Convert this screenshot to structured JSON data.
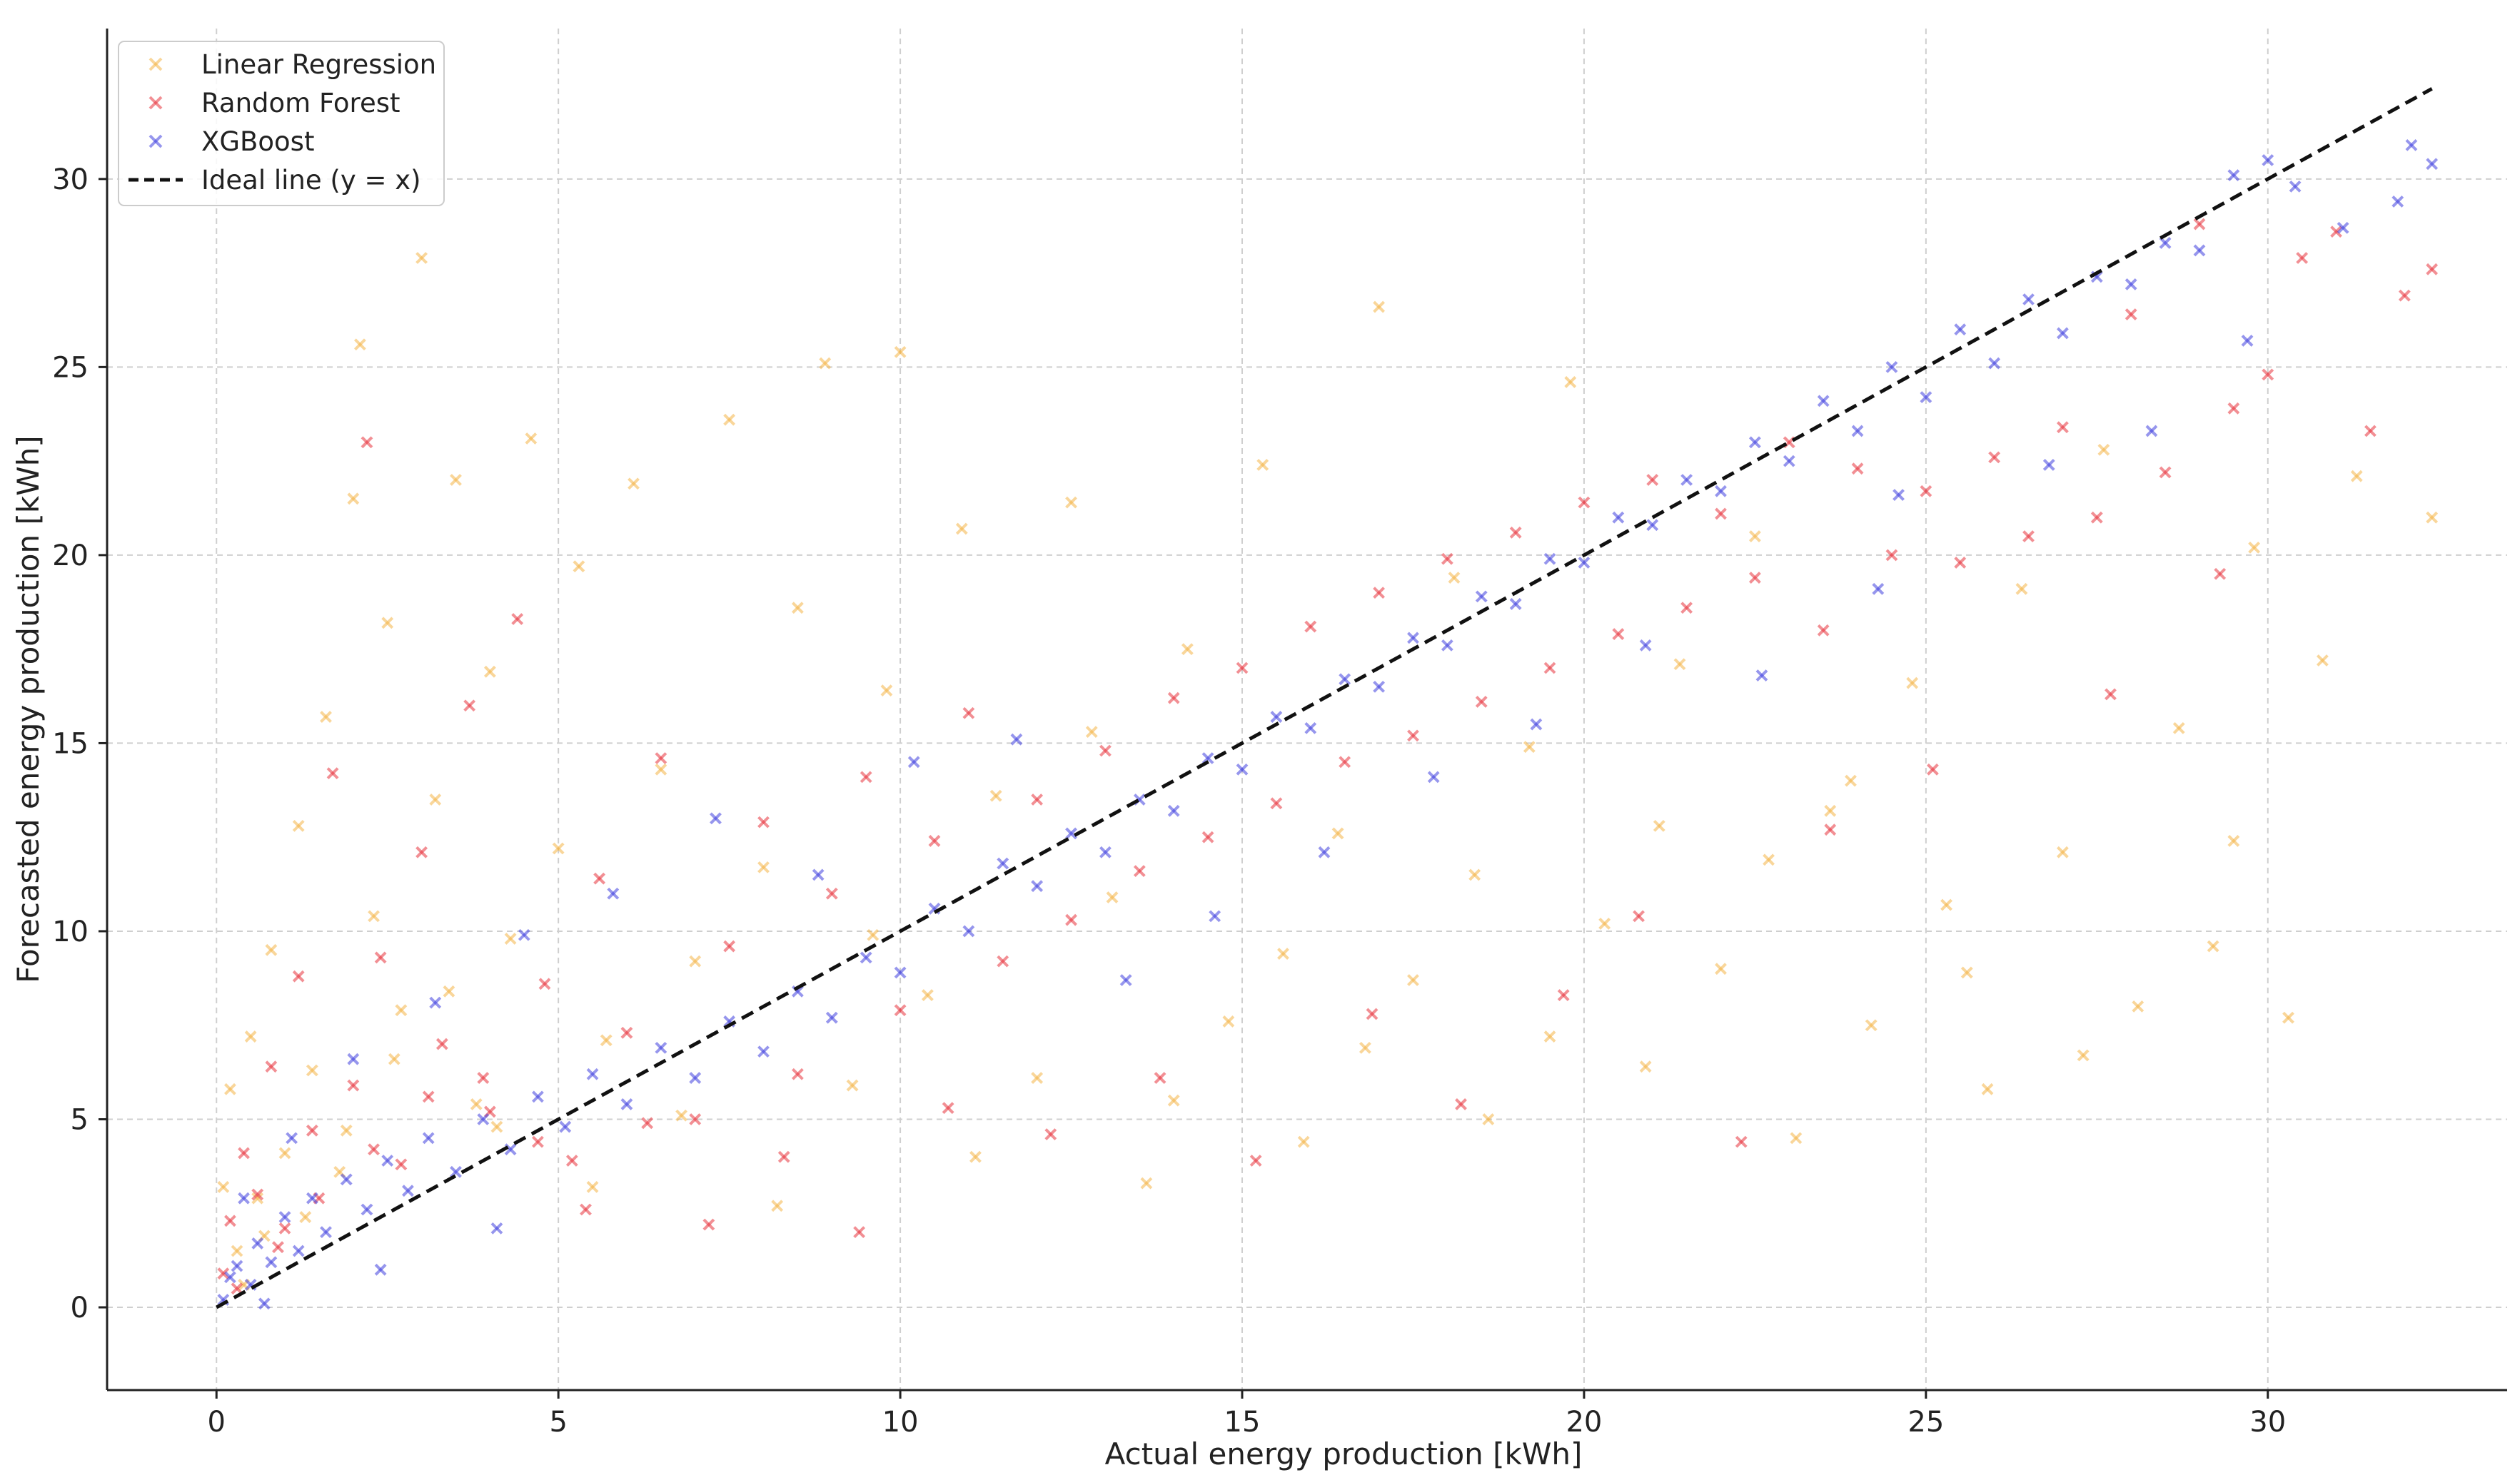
{
  "chart_data": {
    "type": "scatter",
    "title": "",
    "xlabel": "Actual energy production [kWh]",
    "ylabel": "Forecasted energy production [kWh]",
    "xlim": [
      -1.6,
      33.5
    ],
    "ylim": [
      -2.2,
      34.0
    ],
    "xticks": [
      0,
      5,
      10,
      15,
      20,
      25,
      30
    ],
    "yticks": [
      0,
      5,
      10,
      15,
      20,
      25,
      30
    ],
    "grid": true,
    "legend_position": "top-left",
    "series": [
      {
        "name": "Linear Regression",
        "color": "#f4b447",
        "marker": "x",
        "points": [
          [
            0.1,
            3.2
          ],
          [
            0.2,
            5.8
          ],
          [
            0.3,
            1.5
          ],
          [
            0.5,
            7.2
          ],
          [
            0.6,
            2.9
          ],
          [
            0.8,
            9.5
          ],
          [
            1.0,
            4.1
          ],
          [
            1.2,
            12.8
          ],
          [
            1.4,
            6.3
          ],
          [
            1.6,
            15.7
          ],
          [
            1.8,
            3.6
          ],
          [
            2.0,
            21.5
          ],
          [
            2.1,
            25.6
          ],
          [
            2.3,
            10.4
          ],
          [
            2.5,
            18.2
          ],
          [
            2.7,
            7.9
          ],
          [
            3.0,
            27.9
          ],
          [
            3.2,
            13.5
          ],
          [
            3.5,
            22.0
          ],
          [
            3.8,
            5.4
          ],
          [
            4.0,
            16.9
          ],
          [
            4.3,
            9.8
          ],
          [
            4.6,
            23.1
          ],
          [
            5.0,
            12.2
          ],
          [
            5.3,
            19.7
          ],
          [
            5.7,
            7.1
          ],
          [
            6.1,
            21.9
          ],
          [
            6.5,
            14.3
          ],
          [
            7.0,
            9.2
          ],
          [
            7.5,
            23.6
          ],
          [
            8.0,
            11.7
          ],
          [
            8.5,
            18.6
          ],
          [
            8.9,
            25.1
          ],
          [
            9.3,
            5.9
          ],
          [
            9.8,
            16.4
          ],
          [
            10.0,
            25.4
          ],
          [
            10.4,
            8.3
          ],
          [
            10.9,
            20.7
          ],
          [
            11.4,
            13.6
          ],
          [
            12.0,
            6.1
          ],
          [
            12.5,
            21.4
          ],
          [
            13.1,
            10.9
          ],
          [
            13.6,
            3.3
          ],
          [
            14.2,
            17.5
          ],
          [
            14.8,
            7.6
          ],
          [
            15.3,
            22.4
          ],
          [
            15.9,
            4.4
          ],
          [
            16.4,
            12.6
          ],
          [
            17.0,
            26.6
          ],
          [
            17.5,
            8.7
          ],
          [
            18.1,
            19.4
          ],
          [
            18.6,
            5.0
          ],
          [
            19.2,
            14.9
          ],
          [
            19.8,
            24.6
          ],
          [
            20.3,
            10.2
          ],
          [
            20.9,
            6.4
          ],
          [
            21.4,
            17.1
          ],
          [
            22.0,
            9.0
          ],
          [
            22.5,
            20.5
          ],
          [
            23.1,
            4.5
          ],
          [
            23.6,
            13.2
          ],
          [
            24.2,
            7.5
          ],
          [
            24.8,
            16.6
          ],
          [
            25.3,
            10.7
          ],
          [
            25.9,
            5.8
          ],
          [
            26.4,
            19.1
          ],
          [
            27.0,
            12.1
          ],
          [
            27.6,
            22.8
          ],
          [
            28.1,
            8.0
          ],
          [
            28.7,
            15.4
          ],
          [
            29.2,
            9.6
          ],
          [
            29.8,
            20.2
          ],
          [
            30.3,
            7.7
          ],
          [
            30.8,
            17.2
          ],
          [
            31.3,
            22.1
          ],
          [
            32.4,
            21.0
          ],
          [
            0.4,
            0.6
          ],
          [
            0.7,
            1.9
          ],
          [
            1.3,
            2.4
          ],
          [
            1.9,
            4.7
          ],
          [
            2.6,
            6.6
          ],
          [
            3.4,
            8.4
          ],
          [
            4.1,
            4.8
          ],
          [
            5.5,
            3.2
          ],
          [
            6.8,
            5.1
          ],
          [
            8.2,
            2.7
          ],
          [
            9.6,
            9.9
          ],
          [
            11.1,
            4.0
          ],
          [
            12.8,
            15.3
          ],
          [
            14.0,
            5.5
          ],
          [
            15.6,
            9.4
          ],
          [
            16.8,
            6.9
          ],
          [
            18.4,
            11.5
          ],
          [
            19.5,
            7.2
          ],
          [
            21.1,
            12.8
          ],
          [
            22.7,
            11.9
          ],
          [
            23.9,
            14.0
          ],
          [
            25.6,
            8.9
          ],
          [
            27.3,
            6.7
          ],
          [
            29.5,
            12.4
          ]
        ]
      },
      {
        "name": "Random Forest",
        "color": "#e8333c",
        "marker": "x",
        "points": [
          [
            0.1,
            0.9
          ],
          [
            0.2,
            2.3
          ],
          [
            0.4,
            4.1
          ],
          [
            0.6,
            3.0
          ],
          [
            0.8,
            6.4
          ],
          [
            1.0,
            2.1
          ],
          [
            1.2,
            8.8
          ],
          [
            1.4,
            4.7
          ],
          [
            1.7,
            14.2
          ],
          [
            2.0,
            5.9
          ],
          [
            2.2,
            23.0
          ],
          [
            2.4,
            9.3
          ],
          [
            2.7,
            3.8
          ],
          [
            3.0,
            12.1
          ],
          [
            3.3,
            7.0
          ],
          [
            3.7,
            16.0
          ],
          [
            4.0,
            5.2
          ],
          [
            4.4,
            18.3
          ],
          [
            4.8,
            8.6
          ],
          [
            5.2,
            3.9
          ],
          [
            5.6,
            11.4
          ],
          [
            6.0,
            7.3
          ],
          [
            6.5,
            14.6
          ],
          [
            7.0,
            5.0
          ],
          [
            7.5,
            9.6
          ],
          [
            8.0,
            12.9
          ],
          [
            8.5,
            6.2
          ],
          [
            9.0,
            11.0
          ],
          [
            9.5,
            14.1
          ],
          [
            10.0,
            7.9
          ],
          [
            10.5,
            12.4
          ],
          [
            11.0,
            15.8
          ],
          [
            11.5,
            9.2
          ],
          [
            12.0,
            13.5
          ],
          [
            12.5,
            10.3
          ],
          [
            13.0,
            14.8
          ],
          [
            13.5,
            11.6
          ],
          [
            14.0,
            16.2
          ],
          [
            14.5,
            12.5
          ],
          [
            15.0,
            17.0
          ],
          [
            15.5,
            13.4
          ],
          [
            16.0,
            18.1
          ],
          [
            16.5,
            14.5
          ],
          [
            17.0,
            19.0
          ],
          [
            17.5,
            15.2
          ],
          [
            18.0,
            19.9
          ],
          [
            18.5,
            16.1
          ],
          [
            19.0,
            20.6
          ],
          [
            19.5,
            17.0
          ],
          [
            20.0,
            21.4
          ],
          [
            20.5,
            17.9
          ],
          [
            21.0,
            22.0
          ],
          [
            21.5,
            18.6
          ],
          [
            22.0,
            21.1
          ],
          [
            22.5,
            19.4
          ],
          [
            23.0,
            23.0
          ],
          [
            23.5,
            18.0
          ],
          [
            24.0,
            22.3
          ],
          [
            24.5,
            20.0
          ],
          [
            25.0,
            21.7
          ],
          [
            25.5,
            19.8
          ],
          [
            26.0,
            22.6
          ],
          [
            26.5,
            20.5
          ],
          [
            27.0,
            23.4
          ],
          [
            27.5,
            21.0
          ],
          [
            28.0,
            26.4
          ],
          [
            28.5,
            22.2
          ],
          [
            29.0,
            28.8
          ],
          [
            29.5,
            23.9
          ],
          [
            30.0,
            24.8
          ],
          [
            30.5,
            27.9
          ],
          [
            31.0,
            28.6
          ],
          [
            31.5,
            23.3
          ],
          [
            32.0,
            26.9
          ],
          [
            32.4,
            27.6
          ],
          [
            0.3,
            0.5
          ],
          [
            0.9,
            1.6
          ],
          [
            1.5,
            2.9
          ],
          [
            2.3,
            4.2
          ],
          [
            3.1,
            5.6
          ],
          [
            3.9,
            6.1
          ],
          [
            4.7,
            4.4
          ],
          [
            5.4,
            2.6
          ],
          [
            6.3,
            4.9
          ],
          [
            7.2,
            2.2
          ],
          [
            8.3,
            4.0
          ],
          [
            9.4,
            2.0
          ],
          [
            10.7,
            5.3
          ],
          [
            12.2,
            4.6
          ],
          [
            13.8,
            6.1
          ],
          [
            15.2,
            3.9
          ],
          [
            16.9,
            7.8
          ],
          [
            18.2,
            5.4
          ],
          [
            19.7,
            8.3
          ],
          [
            20.8,
            10.4
          ],
          [
            22.3,
            4.4
          ],
          [
            23.6,
            12.7
          ],
          [
            25.1,
            14.3
          ],
          [
            27.7,
            16.3
          ],
          [
            29.3,
            19.5
          ]
        ]
      },
      {
        "name": "XGBoost",
        "color": "#3f3fdf",
        "marker": "x",
        "points": [
          [
            0.1,
            0.2
          ],
          [
            0.2,
            0.8
          ],
          [
            0.3,
            1.1
          ],
          [
            0.5,
            0.6
          ],
          [
            0.6,
            1.7
          ],
          [
            0.8,
            1.2
          ],
          [
            1.0,
            2.4
          ],
          [
            1.2,
            1.5
          ],
          [
            1.4,
            2.9
          ],
          [
            1.6,
            2.0
          ],
          [
            1.9,
            3.4
          ],
          [
            2.2,
            2.6
          ],
          [
            2.5,
            3.9
          ],
          [
            2.8,
            3.1
          ],
          [
            3.1,
            4.5
          ],
          [
            3.5,
            3.6
          ],
          [
            3.9,
            5.0
          ],
          [
            4.3,
            4.2
          ],
          [
            4.7,
            5.6
          ],
          [
            5.1,
            4.8
          ],
          [
            5.5,
            6.2
          ],
          [
            6.0,
            5.4
          ],
          [
            6.5,
            6.9
          ],
          [
            7.0,
            6.1
          ],
          [
            7.5,
            7.6
          ],
          [
            8.0,
            6.8
          ],
          [
            8.5,
            8.4
          ],
          [
            9.0,
            7.7
          ],
          [
            9.5,
            9.3
          ],
          [
            10.0,
            8.9
          ],
          [
            10.5,
            10.6
          ],
          [
            11.0,
            10.0
          ],
          [
            11.5,
            11.8
          ],
          [
            12.0,
            11.2
          ],
          [
            12.5,
            12.6
          ],
          [
            13.0,
            12.1
          ],
          [
            13.5,
            13.5
          ],
          [
            14.0,
            13.2
          ],
          [
            14.5,
            14.6
          ],
          [
            15.0,
            14.3
          ],
          [
            15.5,
            15.7
          ],
          [
            16.0,
            15.4
          ],
          [
            16.5,
            16.7
          ],
          [
            17.0,
            16.5
          ],
          [
            17.5,
            17.8
          ],
          [
            18.0,
            17.6
          ],
          [
            18.5,
            18.9
          ],
          [
            19.0,
            18.7
          ],
          [
            19.5,
            19.9
          ],
          [
            20.0,
            19.8
          ],
          [
            20.5,
            21.0
          ],
          [
            21.0,
            20.8
          ],
          [
            21.5,
            22.0
          ],
          [
            22.0,
            21.7
          ],
          [
            22.5,
            23.0
          ],
          [
            23.0,
            22.5
          ],
          [
            23.5,
            24.1
          ],
          [
            24.0,
            23.3
          ],
          [
            24.5,
            25.0
          ],
          [
            25.0,
            24.2
          ],
          [
            25.5,
            26.0
          ],
          [
            26.0,
            25.1
          ],
          [
            26.5,
            26.8
          ],
          [
            27.0,
            25.9
          ],
          [
            27.5,
            27.4
          ],
          [
            28.0,
            27.2
          ],
          [
            28.5,
            28.3
          ],
          [
            29.0,
            28.1
          ],
          [
            29.5,
            30.1
          ],
          [
            30.0,
            30.5
          ],
          [
            30.4,
            29.8
          ],
          [
            31.1,
            28.7
          ],
          [
            31.9,
            29.4
          ],
          [
            32.4,
            30.4
          ],
          [
            32.1,
            30.9
          ],
          [
            0.4,
            2.9
          ],
          [
            1.1,
            4.5
          ],
          [
            2.0,
            6.6
          ],
          [
            3.2,
            8.1
          ],
          [
            4.5,
            9.9
          ],
          [
            5.8,
            11.0
          ],
          [
            7.3,
            13.0
          ],
          [
            8.8,
            11.5
          ],
          [
            10.2,
            14.5
          ],
          [
            11.7,
            15.1
          ],
          [
            13.3,
            8.7
          ],
          [
            14.6,
            10.4
          ],
          [
            16.2,
            12.1
          ],
          [
            17.8,
            14.1
          ],
          [
            19.3,
            15.5
          ],
          [
            20.9,
            17.6
          ],
          [
            22.6,
            16.8
          ],
          [
            24.3,
            19.1
          ],
          [
            24.6,
            21.6
          ],
          [
            26.8,
            22.4
          ],
          [
            28.3,
            23.3
          ],
          [
            29.7,
            25.7
          ],
          [
            0.7,
            0.1
          ],
          [
            2.4,
            1.0
          ],
          [
            4.1,
            2.1
          ]
        ]
      },
      {
        "name": "Ideal line (y = x)",
        "color": "#111111",
        "marker": "dashed-line",
        "points": [
          [
            0,
            0
          ],
          [
            32.4,
            32.4
          ]
        ]
      }
    ]
  }
}
